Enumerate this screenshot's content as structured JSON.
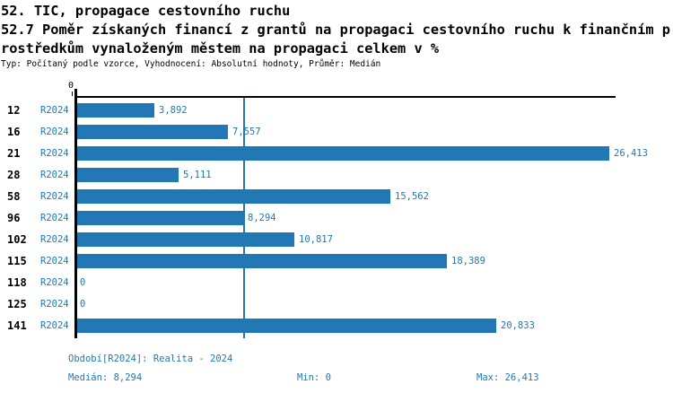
{
  "header": {
    "title_line1": "52. TIC, propagace cestovního ruchu",
    "title_line2": "52.7 Poměr získaných financí z grantů na propagaci cestovního ruchu k finančním p",
    "title_line3": "rostředkům vynaloženým městem na propagaci celkem v %",
    "subtitle": "Typ: Počítaný podle vzorce, Vyhodnocení: Absolutní hodnoty, Průměr: Medián"
  },
  "chart": {
    "accent_color": "#2178b5",
    "axis_zero_label": "0",
    "max_value": 26.413,
    "median_value": 8.294,
    "rows": [
      {
        "id": "12",
        "period": "R2024",
        "value": 3.892,
        "value_label": "3,892"
      },
      {
        "id": "16",
        "period": "R2024",
        "value": 7.557,
        "value_label": "7,557"
      },
      {
        "id": "21",
        "period": "R2024",
        "value": 26.413,
        "value_label": "26,413"
      },
      {
        "id": "28",
        "period": "R2024",
        "value": 5.111,
        "value_label": "5,111"
      },
      {
        "id": "58",
        "period": "R2024",
        "value": 15.562,
        "value_label": "15,562"
      },
      {
        "id": "96",
        "period": "R2024",
        "value": 8.294,
        "value_label": "8,294"
      },
      {
        "id": "102",
        "period": "R2024",
        "value": 10.817,
        "value_label": "10,817"
      },
      {
        "id": "115",
        "period": "R2024",
        "value": 18.389,
        "value_label": "18,389"
      },
      {
        "id": "118",
        "period": "R2024",
        "value": 0,
        "value_label": "0"
      },
      {
        "id": "125",
        "period": "R2024",
        "value": 0,
        "value_label": "0"
      },
      {
        "id": "141",
        "period": "R2024",
        "value": 20.833,
        "value_label": "20,833"
      }
    ]
  },
  "footer": {
    "period_note": "Období[R2024]: Realita - 2024",
    "median_label": "Medián: 8,294",
    "min_label": "Min: 0",
    "max_label": "Max: 26,413"
  },
  "chart_data": {
    "type": "bar",
    "orientation": "horizontal",
    "title": "52. TIC, propagace cestovního ruchu",
    "subtitle": "52.7 Poměr získaných financí z grantů na propagaci cestovního ruchu k finančním prostředkům vynaloženým městem na propagaci celkem v %",
    "meta": "Typ: Počítaný podle vzorce, Vyhodnocení: Absolutní hodnoty, Průměr: Medián",
    "categories": [
      "12",
      "16",
      "21",
      "28",
      "58",
      "96",
      "102",
      "115",
      "118",
      "125",
      "141"
    ],
    "series": [
      {
        "name": "R2024 (Realita - 2024)",
        "values": [
          3.892,
          7.557,
          26.413,
          5.111,
          15.562,
          8.294,
          10.817,
          18.389,
          0,
          0,
          20.833
        ],
        "value_labels": [
          "3,892",
          "7,557",
          "26,413",
          "5,111",
          "15,562",
          "8,294",
          "10,817",
          "18,389",
          "0",
          "0",
          "20,833"
        ]
      }
    ],
    "xlabel": "",
    "ylabel": "",
    "xlim": [
      0,
      26.413
    ],
    "tick_labels_x": [
      "0"
    ],
    "grid": false,
    "legend_position": "none",
    "reference_line": {
      "type": "median",
      "value": 8.294
    },
    "summary": {
      "median": 8.294,
      "min": 0,
      "max": 26.413
    }
  }
}
